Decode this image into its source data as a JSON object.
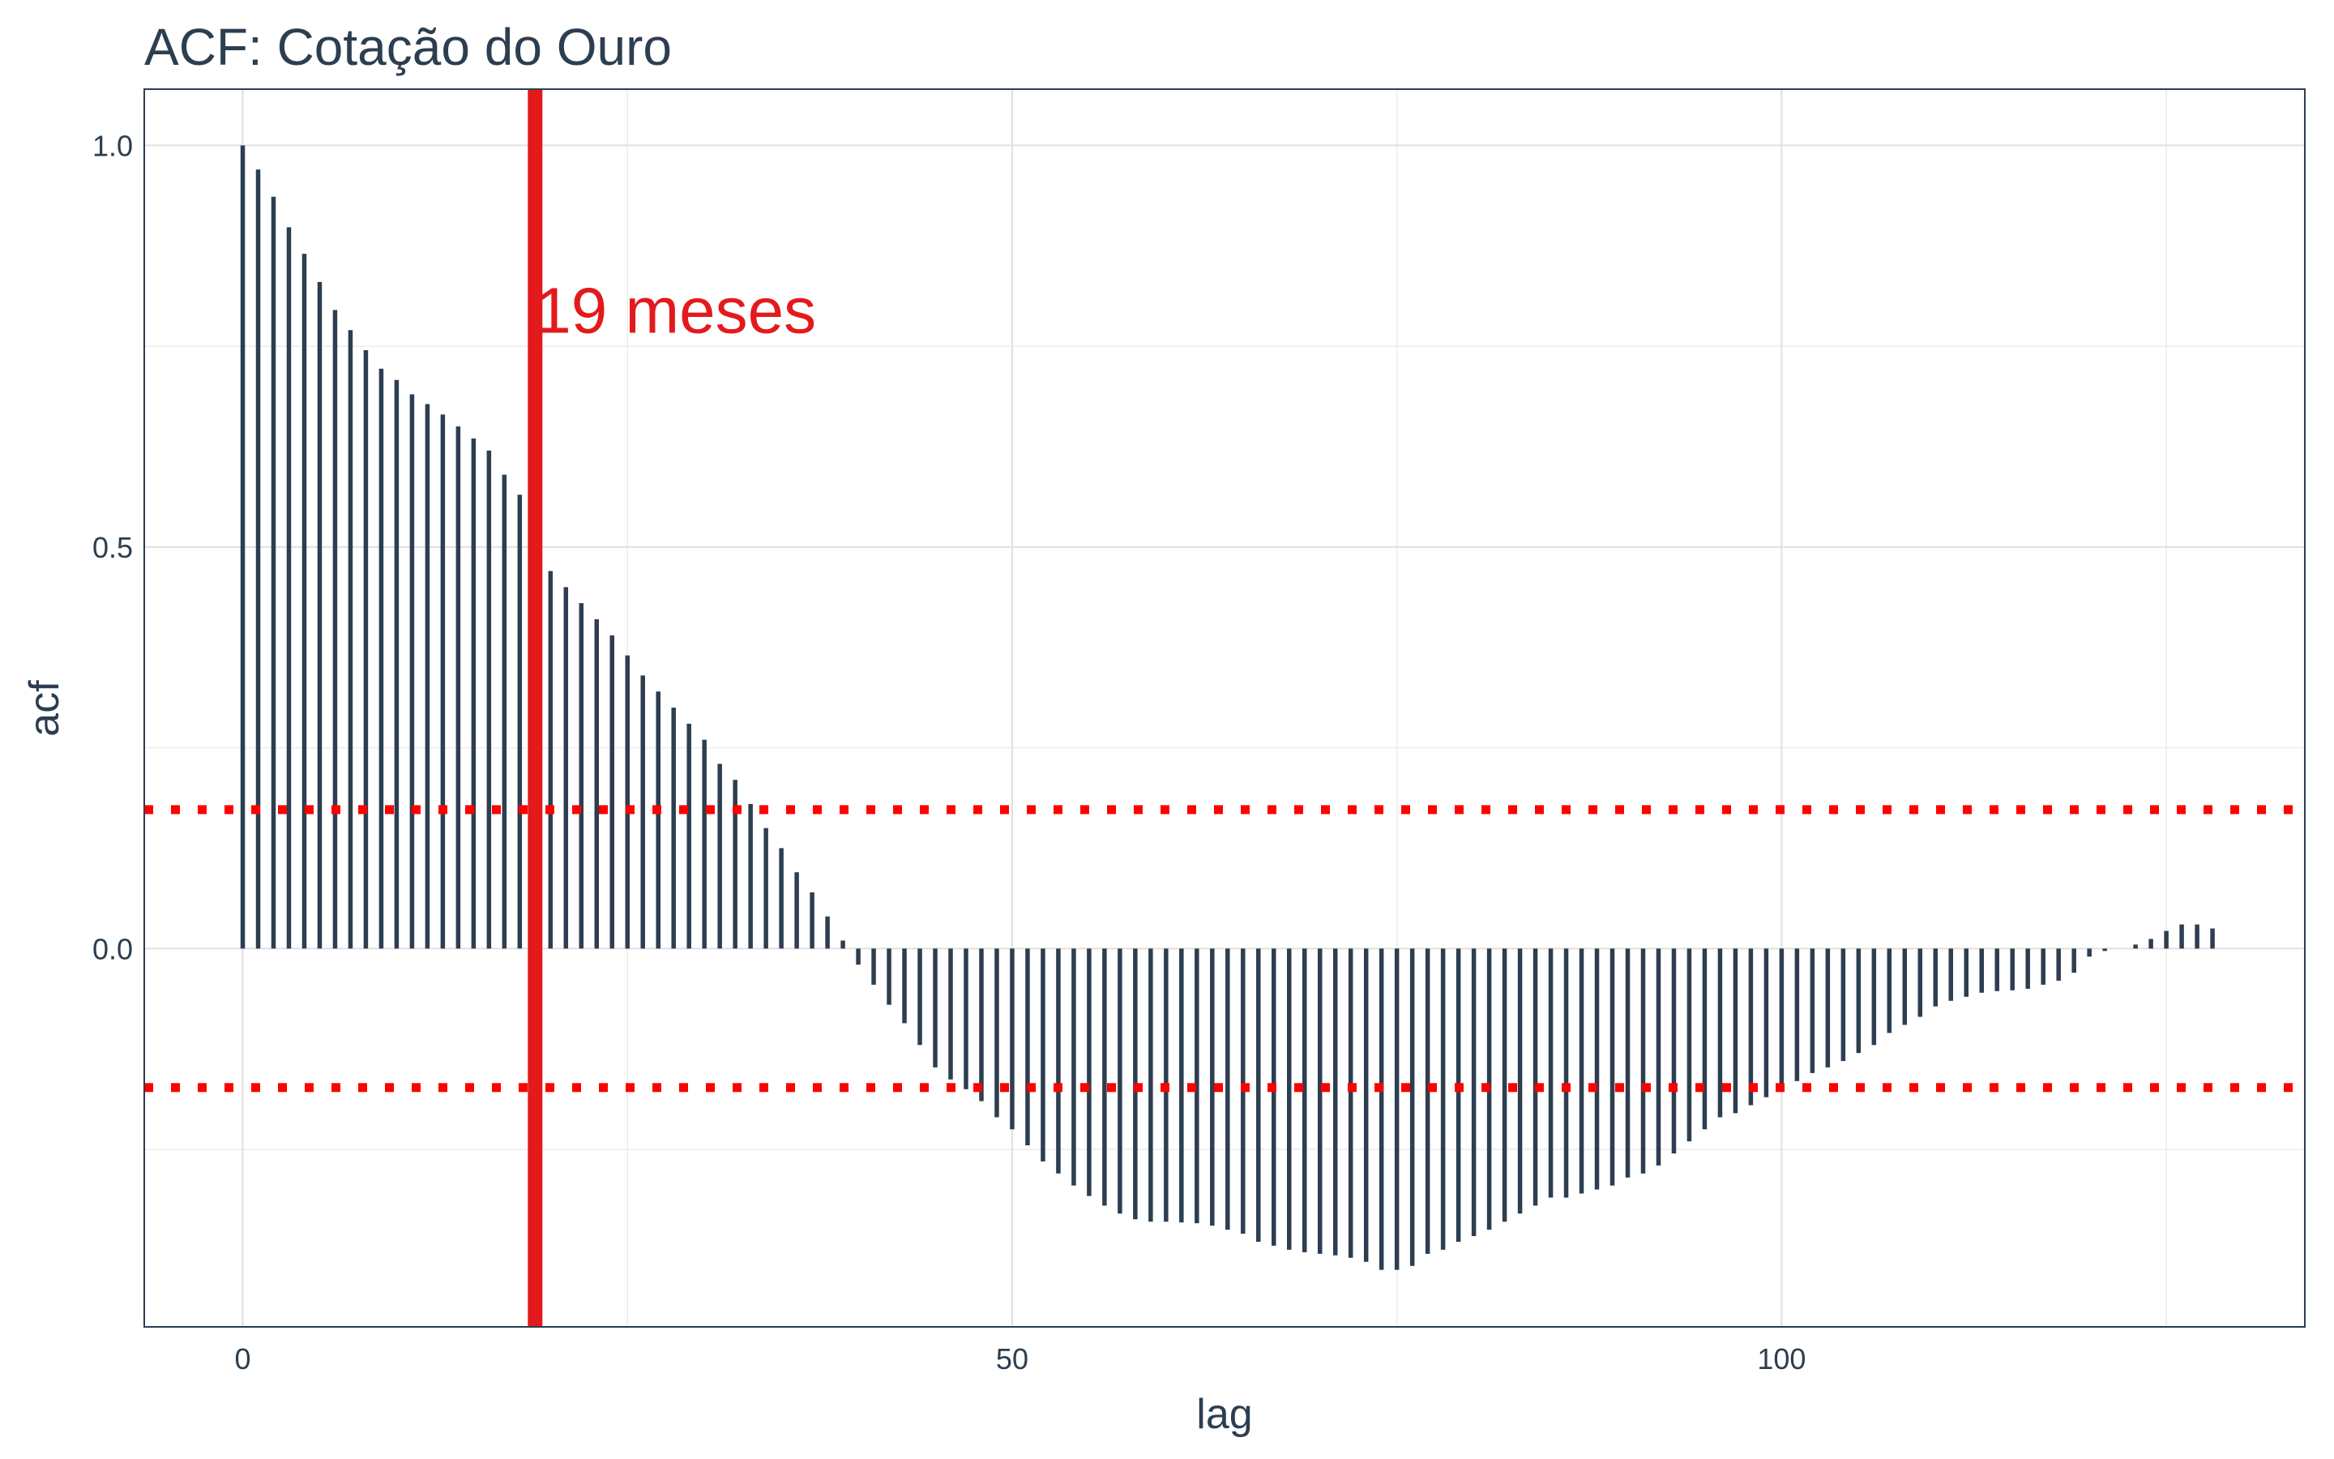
{
  "chart_data": {
    "type": "acf",
    "title": "ACF: Cotação do Ouro",
    "xlabel": "lag",
    "ylabel": "acf",
    "color": "#2c3e50",
    "x": [
      0,
      1,
      2,
      3,
      4,
      5,
      6,
      7,
      8,
      9,
      10,
      11,
      12,
      13,
      14,
      15,
      16,
      17,
      18,
      19,
      20,
      21,
      22,
      23,
      24,
      25,
      26,
      27,
      28,
      29,
      30,
      31,
      32,
      33,
      34,
      35,
      36,
      37,
      38,
      39,
      40,
      41,
      42,
      43,
      44,
      45,
      46,
      47,
      48,
      49,
      50,
      51,
      52,
      53,
      54,
      55,
      56,
      57,
      58,
      59,
      60,
      61,
      62,
      63,
      64,
      65,
      66,
      67,
      68,
      69,
      70,
      71,
      72,
      73,
      74,
      75,
      76,
      77,
      78,
      79,
      80,
      81,
      82,
      83,
      84,
      85,
      86,
      87,
      88,
      89,
      90,
      91,
      92,
      93,
      94,
      95,
      96,
      97,
      98,
      99,
      100,
      101,
      102,
      103,
      104,
      105,
      106,
      107,
      108,
      109,
      110,
      111,
      112,
      113,
      114,
      115,
      116,
      117,
      118,
      119,
      120,
      121,
      122,
      123,
      124,
      125,
      126,
      127,
      128
    ],
    "values": [
      1.0,
      0.97,
      0.936,
      0.898,
      0.865,
      0.83,
      0.795,
      0.77,
      0.745,
      0.722,
      0.708,
      0.69,
      0.678,
      0.665,
      0.65,
      0.635,
      0.62,
      0.59,
      0.565,
      0.54,
      0.47,
      0.45,
      0.43,
      0.41,
      0.39,
      0.365,
      0.34,
      0.32,
      0.3,
      0.28,
      0.26,
      0.23,
      0.21,
      0.18,
      0.15,
      0.125,
      0.095,
      0.07,
      0.04,
      0.01,
      -0.02,
      -0.045,
      -0.07,
      -0.093,
      -0.12,
      -0.148,
      -0.163,
      -0.175,
      -0.19,
      -0.21,
      -0.225,
      -0.245,
      -0.265,
      -0.28,
      -0.295,
      -0.308,
      -0.32,
      -0.33,
      -0.337,
      -0.34,
      -0.34,
      -0.341,
      -0.342,
      -0.345,
      -0.35,
      -0.355,
      -0.365,
      -0.37,
      -0.375,
      -0.378,
      -0.38,
      -0.382,
      -0.385,
      -0.39,
      -0.4,
      -0.4,
      -0.395,
      -0.38,
      -0.375,
      -0.365,
      -0.358,
      -0.35,
      -0.34,
      -0.33,
      -0.32,
      -0.31,
      -0.31,
      -0.305,
      -0.3,
      -0.295,
      -0.285,
      -0.28,
      -0.27,
      -0.255,
      -0.24,
      -0.225,
      -0.21,
      -0.205,
      -0.195,
      -0.185,
      -0.175,
      -0.165,
      -0.155,
      -0.148,
      -0.14,
      -0.13,
      -0.12,
      -0.105,
      -0.095,
      -0.085,
      -0.072,
      -0.065,
      -0.06,
      -0.055,
      -0.053,
      -0.052,
      -0.05,
      -0.045,
      -0.04,
      -0.03,
      -0.01,
      -0.003,
      0.0,
      0.005,
      0.012,
      0.022,
      0.03,
      0.03,
      0.025
    ],
    "xlim": [
      -6.4,
      134
    ],
    "ylim": [
      -0.471,
      1.07
    ],
    "xticks": [
      0,
      50,
      100
    ],
    "xminor": [
      25,
      75,
      125
    ],
    "yticks": [
      {
        "value": 0,
        "label": "0.0"
      },
      {
        "value": 0.5,
        "label": "0.5"
      },
      {
        "value": 1,
        "label": "1.0"
      }
    ],
    "yminor": [
      -0.25,
      0.25,
      0.75
    ],
    "grid": true,
    "hlines": [
      0.173,
      -0.173
    ],
    "hline_color": "#ff0000",
    "vline": 19,
    "vline_color": "#e31a1c",
    "annotation": {
      "text": "19 meses",
      "x": 19,
      "y": 0.795,
      "color": "#e31a1c"
    }
  }
}
